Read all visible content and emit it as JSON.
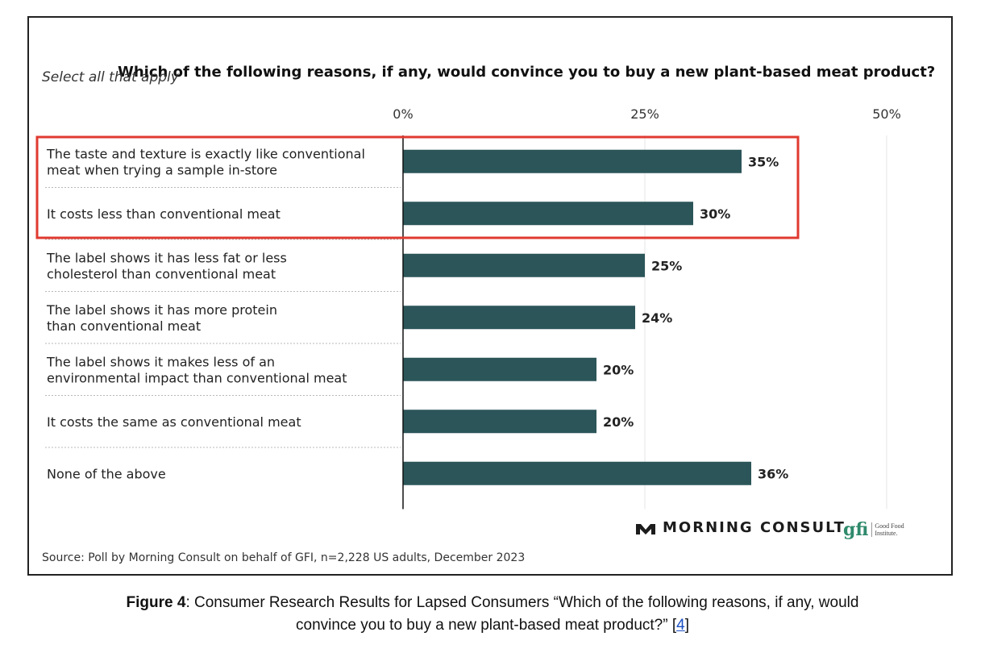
{
  "header": {
    "title": "Which of the following reasons, if any, would convince you to buy a new plant-based meat product?",
    "subtitle": "Select all that apply"
  },
  "chart_data": {
    "type": "bar",
    "orientation": "horizontal",
    "categories": [
      [
        "The taste and texture is exactly like conventional",
        "meat when trying a sample in-store"
      ],
      [
        "It costs less than conventional meat"
      ],
      [
        "The label shows it has less fat or less",
        "cholesterol than conventional meat"
      ],
      [
        "The label shows it has more protein",
        "than conventional meat"
      ],
      [
        "The label shows it makes less of an",
        "environmental impact than conventional meat"
      ],
      [
        "It costs the same as conventional meat"
      ],
      [
        "None of the above"
      ]
    ],
    "values": [
      35,
      30,
      25,
      24,
      20,
      20,
      36
    ],
    "value_labels": [
      "35%",
      "30%",
      "25%",
      "24%",
      "20%",
      "20%",
      "36%"
    ],
    "xlim": [
      0,
      50
    ],
    "ticks": [
      0,
      25,
      50
    ],
    "tick_labels": [
      "0%",
      "25%",
      "50%"
    ],
    "bar_color": "#2b5559",
    "grid": true,
    "highlight": {
      "rows": [
        0,
        1
      ],
      "color": "#e03a30"
    }
  },
  "brands": {
    "morning_consult": "MORNING CONSULT",
    "gfi_mark": "gfi",
    "gfi_name": "Good Food Institute."
  },
  "source": "Source: Poll by Morning Consult on behalf of GFI, n=2,228 US adults, December 2023",
  "caption": {
    "label": "Figure 4",
    "text_line1": ": Consumer Research Results for Lapsed Consumers “Which of the following reasons, if any, would",
    "text_line2": "convince you to buy a new plant-based meat product?” [",
    "ref": "4",
    "text_end": "]"
  }
}
